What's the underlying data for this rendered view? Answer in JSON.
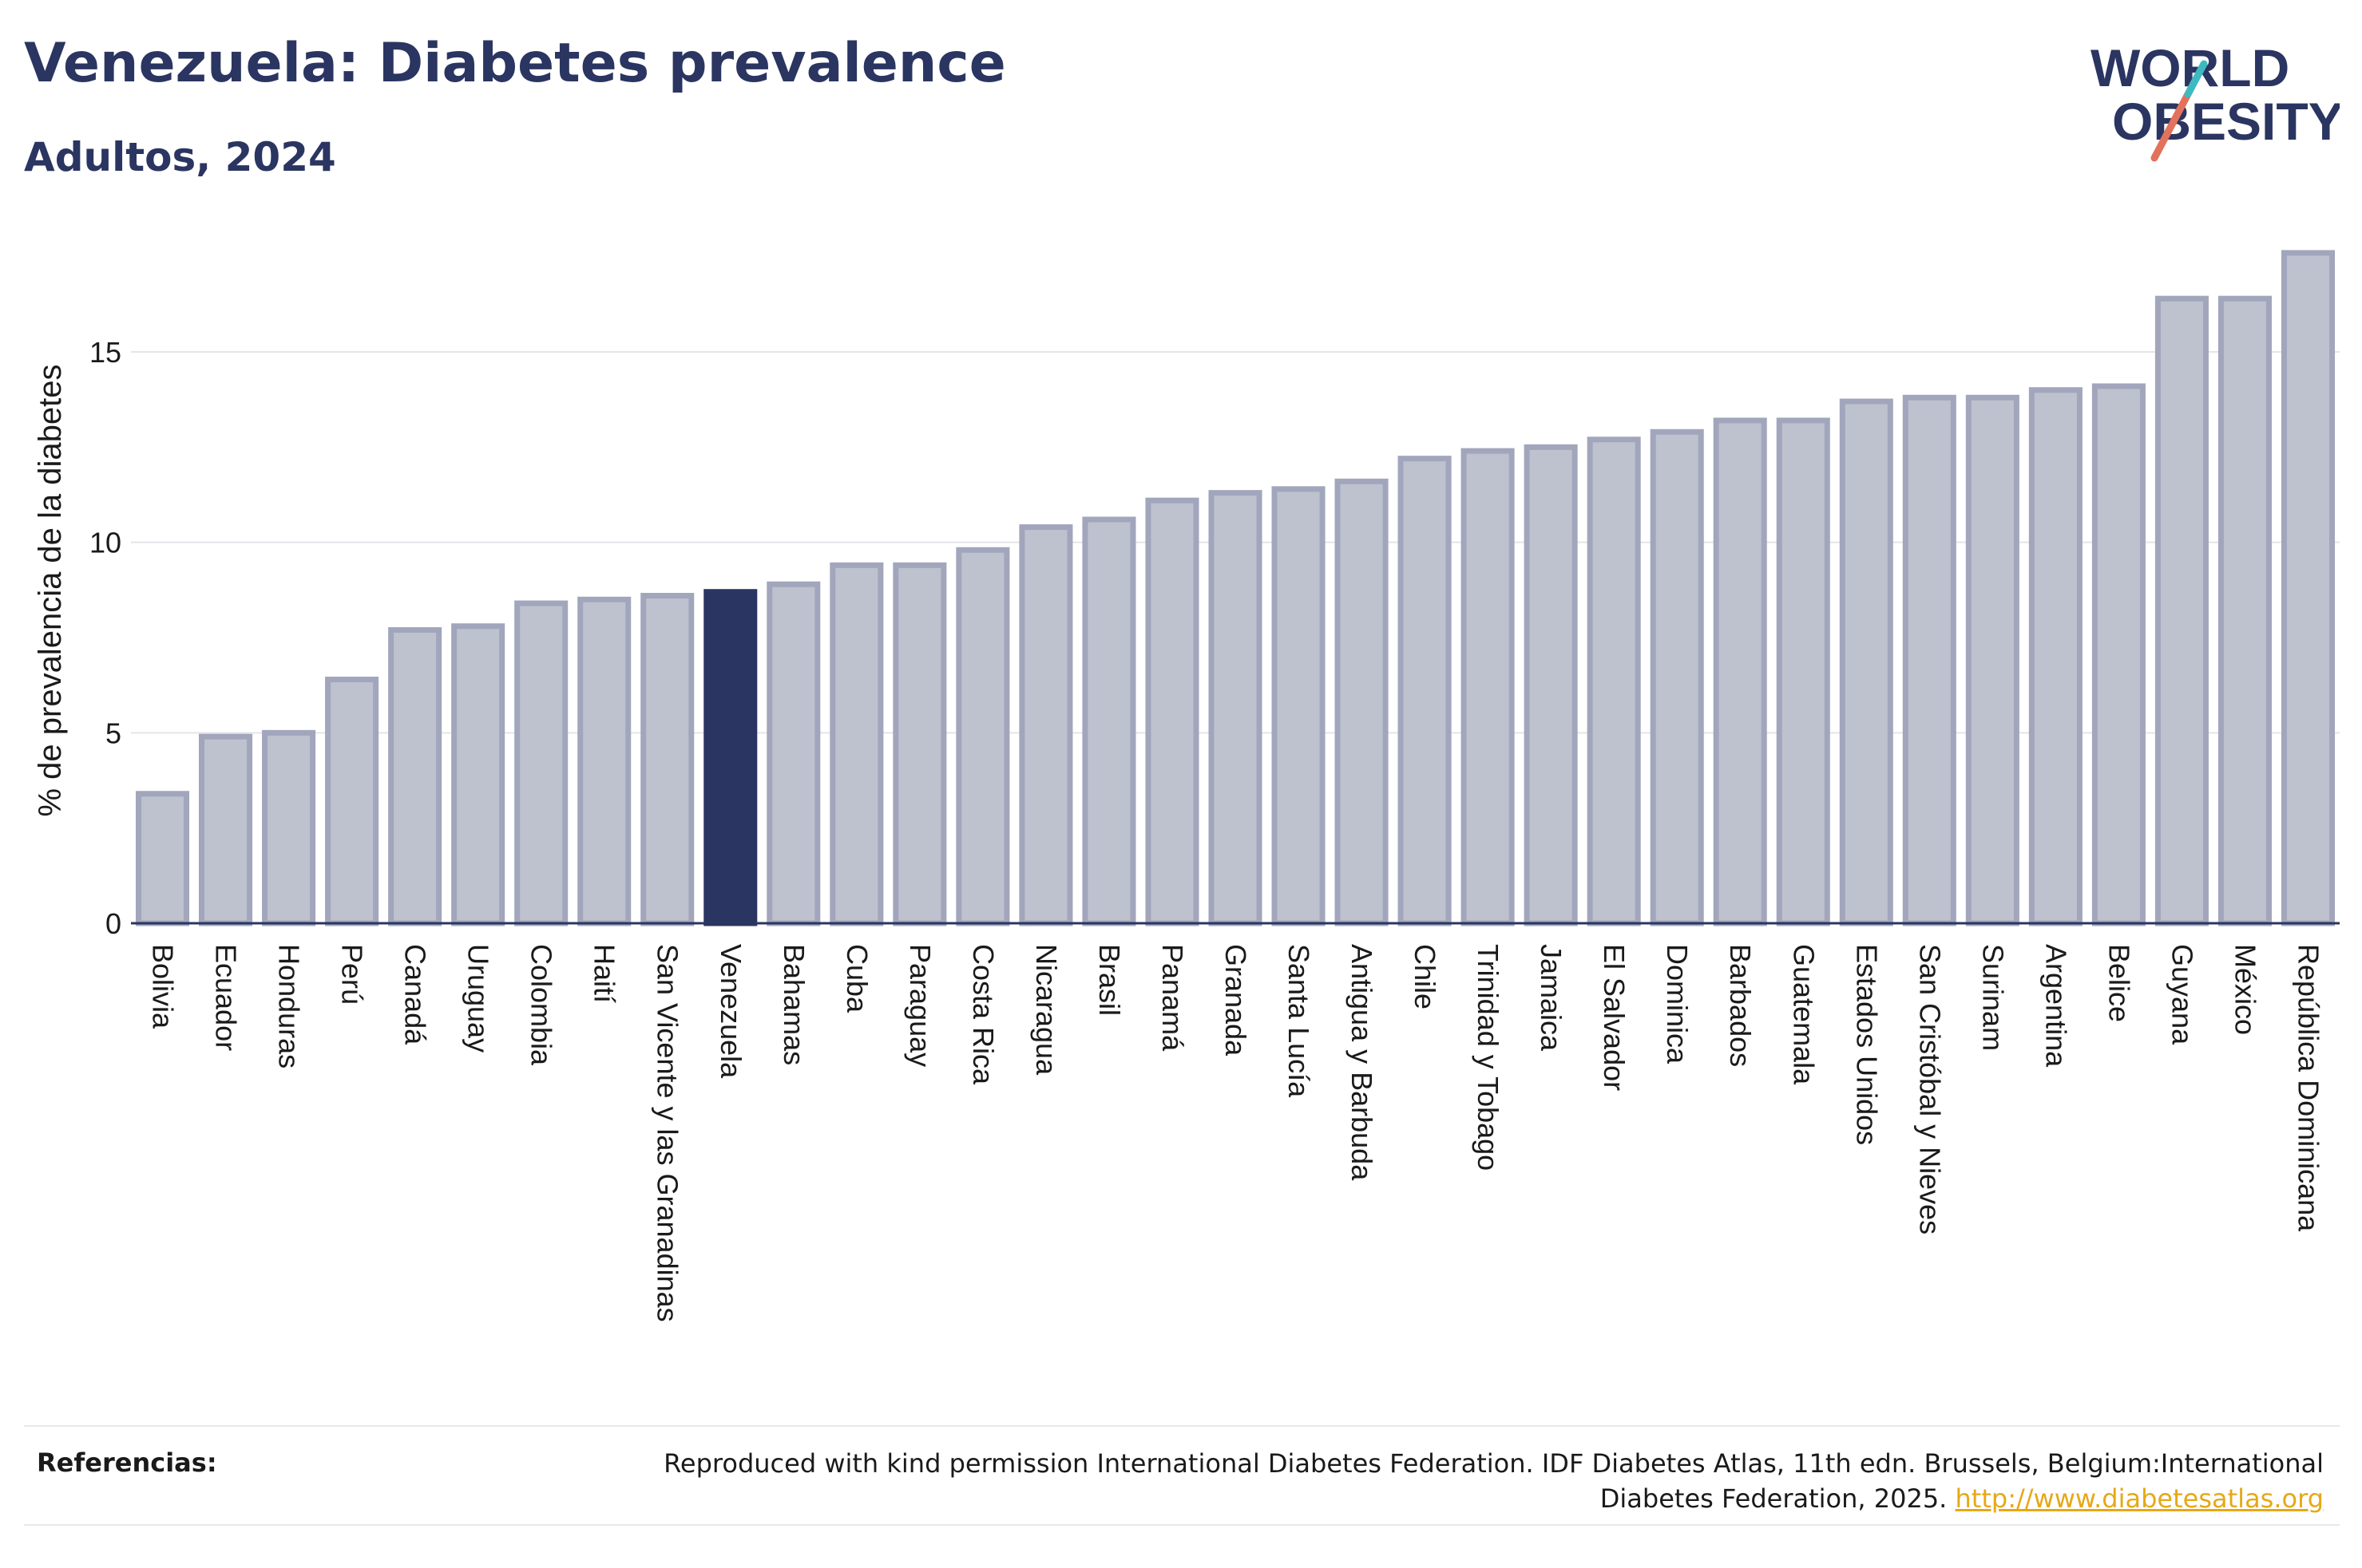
{
  "header": {
    "title": "Venezuela: Diabetes prevalence",
    "subtitle": "Adultos, 2024"
  },
  "logo": {
    "line1": "WORLD",
    "line2": "OBESITY"
  },
  "chart_data": {
    "type": "bar",
    "ylabel": "% de prevalencia de la diabetes",
    "xlabel": "",
    "ylim": [
      0,
      18
    ],
    "yticks": [
      0,
      5,
      10,
      15
    ],
    "grid": true,
    "highlight": "Venezuela",
    "colors": {
      "bar": "#bec1ce",
      "bar_edge": "#a2a6bc",
      "highlight": "#2b3561",
      "grid": "#e3e5ea",
      "axis": "#2b3561"
    },
    "categories": [
      "Bolivia",
      "Ecuador",
      "Honduras",
      "Perú",
      "Canadá",
      "Uruguay",
      "Colombia",
      "Haití",
      "San Vicente y las Granadinas",
      "Venezuela",
      "Bahamas",
      "Cuba",
      "Paraguay",
      "Costa Rica",
      "Nicaragua",
      "Brasil",
      "Panamá",
      "Granada",
      "Santa Lucía",
      "Antigua y Barbuda",
      "Chile",
      "Trinidad y Tobago",
      "Jamaica",
      "El Salvador",
      "Dominica",
      "Barbados",
      "Guatemala",
      "Estados Unidos",
      "San Cristóbal y Nieves",
      "Surinam",
      "Argentina",
      "Belice",
      "Guyana",
      "México",
      "República Dominicana"
    ],
    "values": [
      3.4,
      4.9,
      5.0,
      6.4,
      7.7,
      7.8,
      8.4,
      8.5,
      8.6,
      8.7,
      8.9,
      9.4,
      9.4,
      9.8,
      10.4,
      10.6,
      11.1,
      11.3,
      11.4,
      11.6,
      12.2,
      12.4,
      12.5,
      12.7,
      12.9,
      13.2,
      13.2,
      13.7,
      13.8,
      13.8,
      14.0,
      14.1,
      16.4,
      16.4,
      17.6
    ]
  },
  "references": {
    "label": "Referencias:",
    "text": "Reproduced with kind permission International Diabetes Federation. IDF Diabetes Atlas, 11th edn. Brussels, Belgium:International Diabetes Federation, 2025.",
    "link": "http://www.diabetesatlas.org"
  }
}
